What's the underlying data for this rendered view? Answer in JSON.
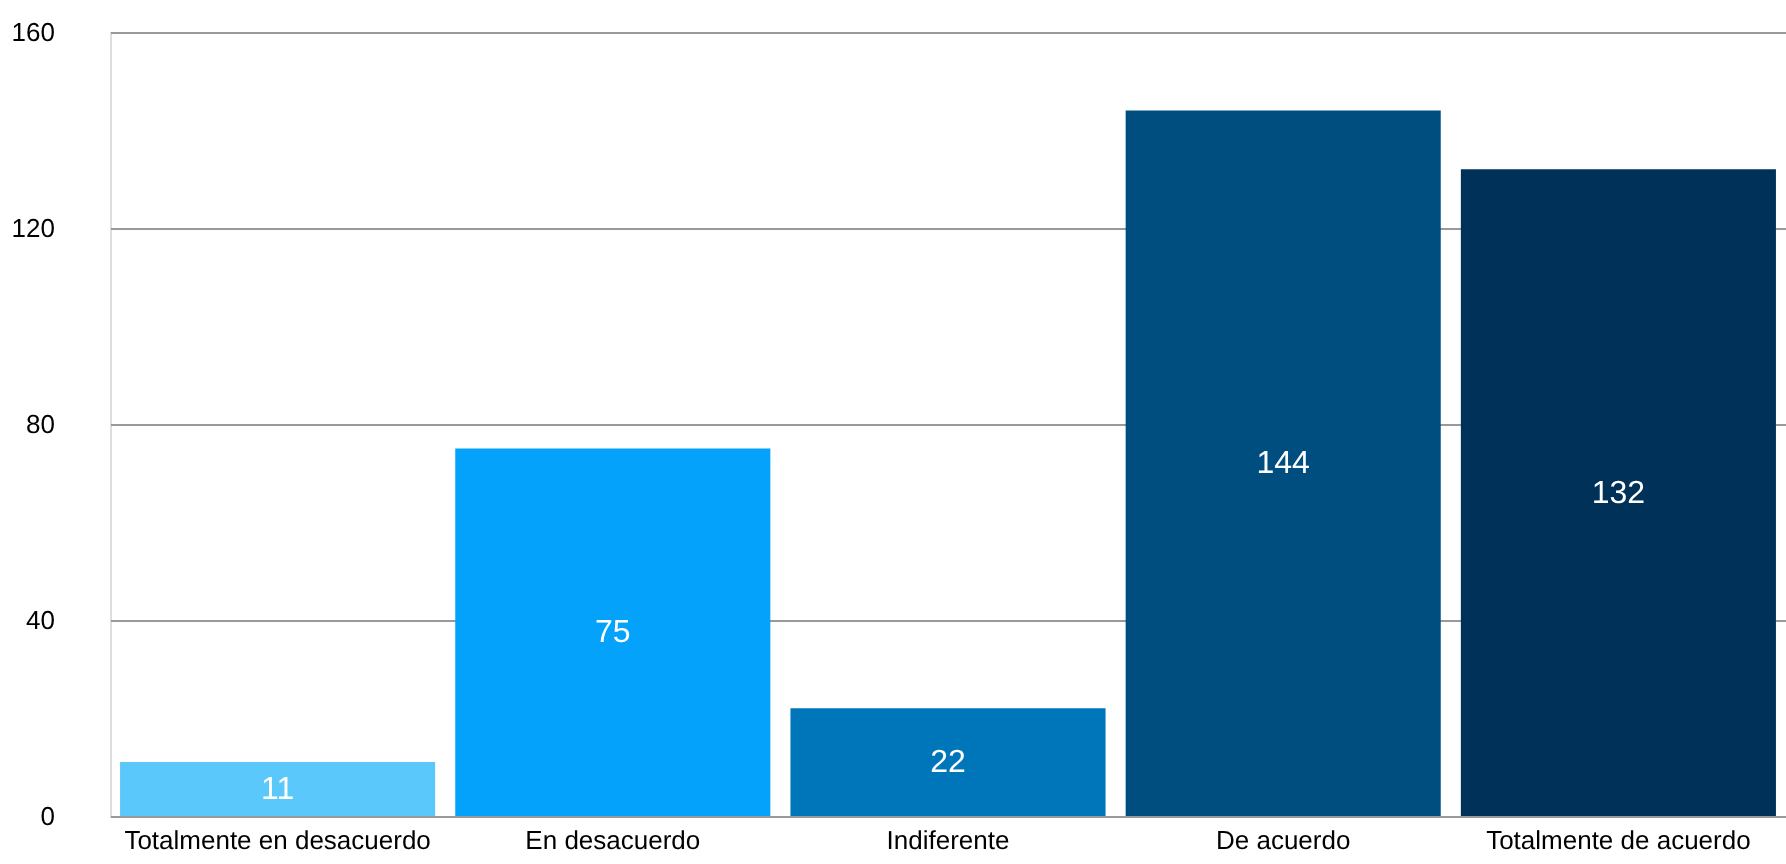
{
  "chart_data": {
    "type": "bar",
    "categories": [
      "Totalmente en desacuerdo",
      "En desacuerdo",
      "Indiferente",
      "De acuerdo",
      "Totalmente de acuerdo"
    ],
    "values": [
      11,
      75,
      22,
      144,
      132
    ],
    "colors": [
      "#5ac8fa",
      "#04a2fa",
      "#0076ba",
      "#004e80",
      "#003158"
    ],
    "ylim": [
      0,
      160
    ],
    "yticks": [
      0,
      40,
      80,
      120,
      160
    ],
    "grid": "y",
    "data_labels": true
  }
}
